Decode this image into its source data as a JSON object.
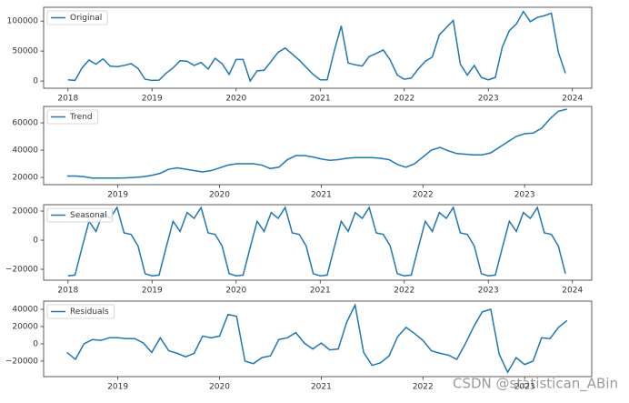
{
  "chart_data": [
    {
      "type": "line",
      "x": [
        2018,
        2018.083,
        2018.167,
        2018.25,
        2018.333,
        2018.417,
        2018.5,
        2018.583,
        2018.667,
        2018.75,
        2018.833,
        2018.917,
        2019,
        2019.083,
        2019.167,
        2019.25,
        2019.333,
        2019.417,
        2019.5,
        2019.583,
        2019.667,
        2019.75,
        2019.833,
        2019.917,
        2020,
        2020.083,
        2020.167,
        2020.25,
        2020.333,
        2020.417,
        2020.5,
        2020.583,
        2020.667,
        2020.75,
        2020.833,
        2020.917,
        2021,
        2021.083,
        2021.167,
        2021.25,
        2021.333,
        2021.417,
        2021.5,
        2021.583,
        2021.667,
        2021.75,
        2021.833,
        2021.917,
        2022,
        2022.083,
        2022.167,
        2022.25,
        2022.333,
        2022.417,
        2022.5,
        2022.583,
        2022.667,
        2022.75,
        2022.833,
        2022.917,
        2023,
        2023.083,
        2023.167,
        2023.25,
        2023.333,
        2023.417,
        2023.5,
        2023.583,
        2023.667,
        2023.75,
        2023.833,
        2023.917
      ],
      "series": [
        {
          "name": "Original",
          "color": "#1f77b4",
          "values": [
            2000,
            1000,
            22000,
            35000,
            28000,
            37000,
            25000,
            24000,
            26000,
            29000,
            21000,
            3000,
            1000,
            1500,
            13000,
            22000,
            34000,
            33000,
            26000,
            31000,
            20000,
            38000,
            29000,
            11000,
            36000,
            36000,
            0,
            17000,
            18000,
            33000,
            48000,
            55000,
            45000,
            35000,
            23000,
            11000,
            2000,
            2000,
            50000,
            92000,
            30000,
            27000,
            25000,
            41000,
            46000,
            52000,
            35000,
            10000,
            3000,
            5000,
            20000,
            33000,
            40000,
            77000,
            89000,
            101000,
            28000,
            10000,
            26000,
            6000,
            2000,
            6000,
            57000,
            84000,
            95000,
            116000,
            99000,
            106000,
            109000,
            113000,
            48000,
            13000
          ]
        }
      ],
      "xlim": [
        2017.71,
        2024.23
      ],
      "xticks": [
        2018,
        2019,
        2020,
        2021,
        2022,
        2023,
        2024
      ],
      "ylim": [
        -12000,
        123000
      ],
      "yticks": [
        0,
        50000,
        100000
      ],
      "legend": "upper left"
    },
    {
      "type": "line",
      "x": [
        2018.5,
        2018.583,
        2018.667,
        2018.75,
        2018.833,
        2018.917,
        2019,
        2019.083,
        2019.167,
        2019.25,
        2019.333,
        2019.417,
        2019.5,
        2019.583,
        2019.667,
        2019.75,
        2019.833,
        2019.917,
        2020,
        2020.083,
        2020.167,
        2020.25,
        2020.333,
        2020.417,
        2020.5,
        2020.583,
        2020.667,
        2020.75,
        2020.833,
        2020.917,
        2021,
        2021.083,
        2021.167,
        2021.25,
        2021.333,
        2021.417,
        2021.5,
        2021.583,
        2021.667,
        2021.75,
        2021.833,
        2021.917,
        2022,
        2022.083,
        2022.167,
        2022.25,
        2022.333,
        2022.417,
        2022.5,
        2022.583,
        2022.667,
        2022.75,
        2022.833,
        2022.917,
        2023,
        2023.083,
        2023.167,
        2023.25,
        2023.333,
        2023.417
      ],
      "series": [
        {
          "name": "Trend",
          "color": "#1f77b4",
          "values": [
            21000,
            21000,
            20500,
            19500,
            19500,
            19500,
            19500,
            19700,
            20000,
            20500,
            21500,
            23000,
            26000,
            27000,
            26000,
            25000,
            24000,
            25000,
            27000,
            29000,
            30000,
            30000,
            30000,
            29000,
            26500,
            27500,
            33000,
            36000,
            36000,
            35000,
            33500,
            32500,
            33000,
            34000,
            34500,
            34500,
            34500,
            34000,
            33000,
            29500,
            27500,
            30000,
            35000,
            40000,
            42000,
            39500,
            37500,
            37000,
            36500,
            36500,
            38000,
            42000,
            46000,
            50000,
            52000,
            52500,
            56000,
            63000,
            68500,
            70000
          ]
        }
      ],
      "xlim": [
        2018.27,
        2023.66
      ],
      "xticks": [
        2019,
        2020,
        2021,
        2022,
        2023
      ],
      "ylim": [
        14700,
        72000
      ],
      "yticks": [
        20000,
        40000,
        60000
      ],
      "legend": "upper left"
    },
    {
      "type": "line",
      "x": [
        2018,
        2018.083,
        2018.167,
        2018.25,
        2018.333,
        2018.417,
        2018.5,
        2018.583,
        2018.667,
        2018.75,
        2018.833,
        2018.917,
        2019,
        2019.083,
        2019.167,
        2019.25,
        2019.333,
        2019.417,
        2019.5,
        2019.583,
        2019.667,
        2019.75,
        2019.833,
        2019.917,
        2020,
        2020.083,
        2020.167,
        2020.25,
        2020.333,
        2020.417,
        2020.5,
        2020.583,
        2020.667,
        2020.75,
        2020.833,
        2020.917,
        2021,
        2021.083,
        2021.167,
        2021.25,
        2021.333,
        2021.417,
        2021.5,
        2021.583,
        2021.667,
        2021.75,
        2021.833,
        2021.917,
        2022,
        2022.083,
        2022.167,
        2022.25,
        2022.333,
        2022.417,
        2022.5,
        2022.583,
        2022.667,
        2022.75,
        2022.833,
        2022.917,
        2023,
        2023.083,
        2023.167,
        2023.25,
        2023.333,
        2023.417,
        2023.5,
        2023.583,
        2023.667,
        2023.75,
        2023.833,
        2023.917
      ],
      "series": [
        {
          "name": "Seasonal",
          "color": "#1f77b4",
          "values": [
            -24500,
            -24000,
            -5000,
            13000,
            6000,
            19000,
            15000,
            22500,
            5000,
            4000,
            -4000,
            -23000,
            -24500,
            -24000,
            -5000,
            13000,
            6000,
            19000,
            15000,
            22500,
            5000,
            4000,
            -4000,
            -23000,
            -24500,
            -24000,
            -5000,
            13000,
            6000,
            19000,
            15000,
            22500,
            5000,
            4000,
            -4000,
            -23000,
            -24500,
            -24000,
            -5000,
            13000,
            6000,
            19000,
            15000,
            22500,
            5000,
            4000,
            -4000,
            -23000,
            -24500,
            -24000,
            -5000,
            13000,
            6000,
            19000,
            15000,
            22500,
            5000,
            4000,
            -4000,
            -23000,
            -24500,
            -24000,
            -5000,
            13000,
            6000,
            19000,
            15000,
            22500,
            5000,
            4000,
            -4000,
            -23000
          ]
        }
      ],
      "xlim": [
        2017.71,
        2024.23
      ],
      "xticks": [
        2018,
        2019,
        2020,
        2021,
        2022,
        2023,
        2024
      ],
      "ylim": [
        -27500,
        24400
      ],
      "yticks": [
        {
          "value": -20000,
          "label": "−20000"
        },
        0,
        20000
      ],
      "legend": "upper left"
    },
    {
      "type": "line",
      "x": [
        2018.5,
        2018.583,
        2018.667,
        2018.75,
        2018.833,
        2018.917,
        2019,
        2019.083,
        2019.167,
        2019.25,
        2019.333,
        2019.417,
        2019.5,
        2019.583,
        2019.667,
        2019.75,
        2019.833,
        2019.917,
        2020,
        2020.083,
        2020.167,
        2020.25,
        2020.333,
        2020.417,
        2020.5,
        2020.583,
        2020.667,
        2020.75,
        2020.833,
        2020.917,
        2021,
        2021.083,
        2021.167,
        2021.25,
        2021.333,
        2021.417,
        2021.5,
        2021.583,
        2021.667,
        2021.75,
        2021.833,
        2021.917,
        2022,
        2022.083,
        2022.167,
        2022.25,
        2022.333,
        2022.417,
        2022.5,
        2022.583,
        2022.667,
        2022.75,
        2022.833,
        2022.917,
        2023,
        2023.083,
        2023.167,
        2023.25,
        2023.333,
        2023.417
      ],
      "series": [
        {
          "name": "Residuals",
          "color": "#1f77b4",
          "values": [
            -10000,
            -18000,
            0,
            5000,
            4000,
            7000,
            7000,
            6000,
            6000,
            1000,
            -10000,
            7000,
            -8000,
            -11000,
            -15000,
            -11000,
            9000,
            7000,
            9000,
            34000,
            32000,
            -20000,
            -23000,
            -16000,
            -14000,
            5000,
            7000,
            13000,
            1000,
            -6000,
            1000,
            -7000,
            -6000,
            25000,
            45000,
            -10000,
            -25000,
            -22000,
            -14000,
            8000,
            19000,
            12000,
            4000,
            -8000,
            -11000,
            -13000,
            -18000,
            0,
            20000,
            37000,
            40000,
            -12000,
            -33000,
            -16000,
            -24000,
            -20000,
            7000,
            6000,
            19000,
            27000
          ]
        }
      ],
      "xlim": [
        2018.27,
        2023.66
      ],
      "xticks": [
        2019,
        2020,
        2021,
        2022,
        2023
      ],
      "ylim": [
        -38000,
        49500
      ],
      "yticks": [
        {
          "value": -20000,
          "label": "−20000"
        },
        0,
        20000,
        40000
      ],
      "legend": "upper left"
    }
  ],
  "watermark": "CSDN @statistican_ABin"
}
